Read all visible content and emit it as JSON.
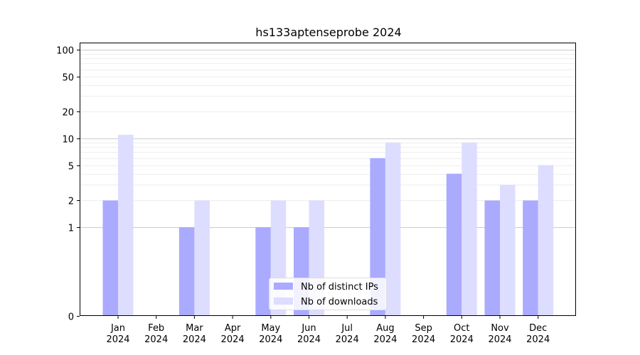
{
  "chart_data": {
    "type": "bar",
    "title": "hs133aptenseprobe 2024",
    "xlabel": "",
    "ylabel": "",
    "categories": [
      [
        "Jan",
        "2024"
      ],
      [
        "Feb",
        "2024"
      ],
      [
        "Mar",
        "2024"
      ],
      [
        "Apr",
        "2024"
      ],
      [
        "May",
        "2024"
      ],
      [
        "Jun",
        "2024"
      ],
      [
        "Jul",
        "2024"
      ],
      [
        "Aug",
        "2024"
      ],
      [
        "Sep",
        "2024"
      ],
      [
        "Oct",
        "2024"
      ],
      [
        "Nov",
        "2024"
      ],
      [
        "Dec",
        "2024"
      ]
    ],
    "series": [
      {
        "name": "Nb of distinct IPs",
        "color": "#aaaaff",
        "values": [
          2,
          0,
          1,
          0,
          1,
          1,
          0,
          6,
          0,
          4,
          2,
          2
        ]
      },
      {
        "name": "Nb of downloads",
        "color": "#ddddff",
        "values": [
          11,
          0,
          2,
          0,
          2,
          2,
          0,
          9,
          0,
          9,
          3,
          5
        ]
      }
    ],
    "y_scale": "symlog",
    "y_ticks": [
      0,
      1,
      2,
      5,
      10,
      20,
      50,
      100
    ],
    "ylim": [
      0,
      120
    ],
    "grid": "horizontal",
    "legend_position": "lower center"
  }
}
